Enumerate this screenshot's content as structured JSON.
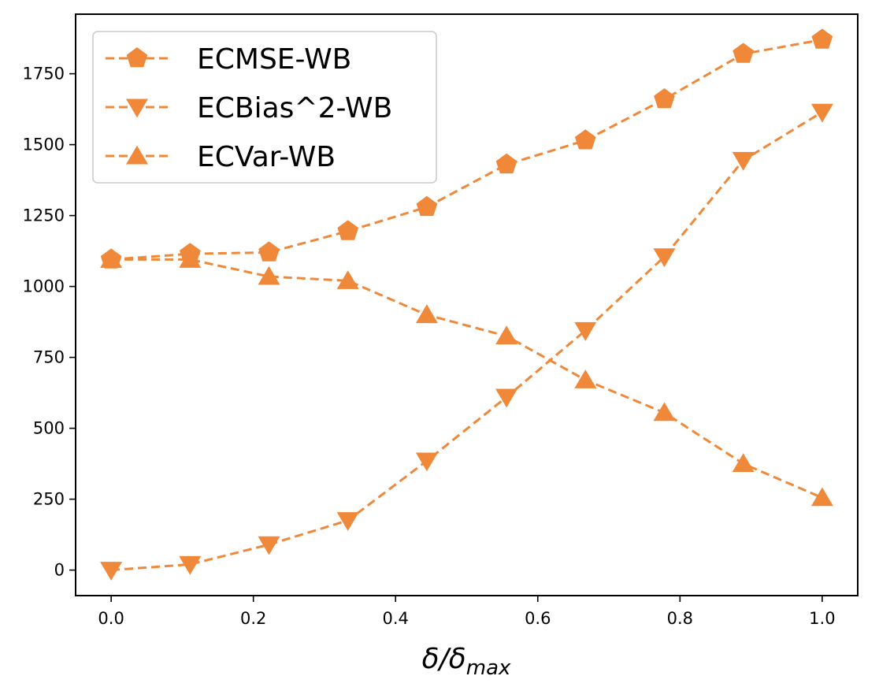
{
  "chart_data": {
    "type": "line",
    "title": "",
    "xlabel_main": "δ/δ",
    "xlabel_sub": "max",
    "ylabel": "",
    "xlim": [
      -0.05,
      1.05
    ],
    "ylim": [
      -90,
      1960
    ],
    "grid": false,
    "legend_position": "top-left",
    "x": [
      0.0,
      0.111,
      0.222,
      0.333,
      0.444,
      0.556,
      0.667,
      0.778,
      0.889,
      1.0
    ],
    "x_ticks": [
      0.0,
      0.2,
      0.4,
      0.6,
      0.8,
      1.0
    ],
    "x_tick_labels": [
      "0.0",
      "0.2",
      "0.4",
      "0.6",
      "0.8",
      "1.0"
    ],
    "y_ticks": [
      0,
      250,
      500,
      750,
      1000,
      1250,
      1500,
      1750
    ],
    "y_tick_labels": [
      "0",
      "250",
      "500",
      "750",
      "1000",
      "1250",
      "1500",
      "1750"
    ],
    "color": "#f0883a",
    "series": [
      {
        "name": "ECMSE-WB",
        "marker": "pentagon",
        "values": [
          1095,
          1115,
          1120,
          1195,
          1280,
          1430,
          1515,
          1660,
          1820,
          1870
        ]
      },
      {
        "name": "ECBias^2-WB",
        "marker": "triangle-down",
        "values": [
          0,
          20,
          90,
          175,
          385,
          610,
          845,
          1105,
          1445,
          1615
        ]
      },
      {
        "name": "ECVar-WB",
        "marker": "triangle-up",
        "values": [
          1095,
          1095,
          1035,
          1020,
          900,
          825,
          670,
          555,
          375,
          255
        ]
      }
    ]
  }
}
